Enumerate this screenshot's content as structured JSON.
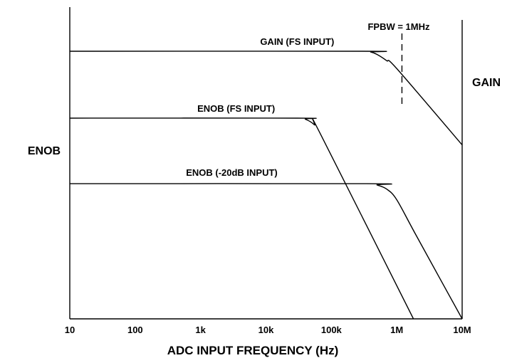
{
  "chart_data": {
    "type": "line",
    "xscale": "log",
    "xlabel": "ADC INPUT FREQUENCY (Hz)",
    "ylabel_left": "ENOB",
    "ylabel_right": "GAIN",
    "x_ticks": [
      {
        "value": 10,
        "label": "10"
      },
      {
        "value": 100,
        "label": "100"
      },
      {
        "value": 1000,
        "label": "1k"
      },
      {
        "value": 10000,
        "label": "10k"
      },
      {
        "value": 100000,
        "label": "100k"
      },
      {
        "value": 1000000,
        "label": "1M"
      },
      {
        "value": 10000000,
        "label": "10M"
      }
    ],
    "xlim": [
      10,
      10000000
    ],
    "ylim": [
      0,
      100
    ],
    "grid": false,
    "series": [
      {
        "name": "GAIN (FS INPUT)",
        "x": [
          10,
          300000,
          400000,
          500000,
          700000,
          1000000,
          10000000
        ],
        "y": [
          100,
          100,
          99.7,
          98.8,
          96.5,
          93.5,
          65
        ]
      },
      {
        "name": "ENOB (FS INPUT)",
        "x": [
          10,
          30000,
          40000,
          55000,
          70000,
          1800000
        ],
        "y": [
          75,
          75,
          74.6,
          72.5,
          68.5,
          0
        ]
      },
      {
        "name": "ENOB (-20dB INPUT)",
        "x": [
          10,
          350000,
          500000,
          700000,
          1000000,
          2000000,
          10000000
        ],
        "y": [
          50.5,
          50.5,
          50,
          48.5,
          44.5,
          31,
          0
        ]
      }
    ],
    "annotations": [
      {
        "text": "FPBW = 1MHz",
        "x": 1200000,
        "line": "dashed-vertical"
      }
    ]
  }
}
